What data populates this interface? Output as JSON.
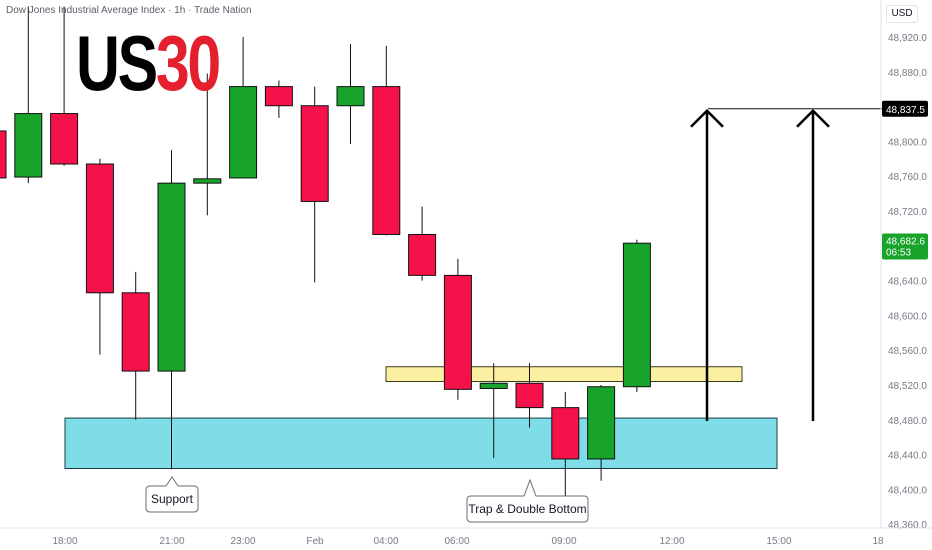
{
  "header": {
    "title": "Dow Jones Industrial Average Index · 1h · Trade Nation",
    "brand_part1": "US",
    "brand_part2": "30",
    "currency": "USD"
  },
  "colors": {
    "up": "#18a32a",
    "down": "#f5124a",
    "support_zone": "#7fdde8",
    "resistance_zone": "#fbf0a2",
    "target_label_bg": "#000000",
    "current_label_bg": "#18a32a"
  },
  "annotations": {
    "support_label": "Support",
    "trap_label": "Trap & Double Bottom"
  },
  "price_labels": {
    "target": "48,837.5",
    "current_price": "48,682.6",
    "countdown": "06:53"
  },
  "chart_data": {
    "type": "candlestick",
    "x_tick_labels": [
      "18:00",
      "21:00",
      "23:00",
      "Feb",
      "04:00",
      "06:00",
      "09:00",
      "12:00",
      "15:00",
      "18"
    ],
    "y_tick_labels": [
      "48,920.0",
      "48,880.0",
      "48,840.0",
      "48,800.0",
      "48,760.0",
      "48,720.0",
      "48,680.0",
      "48,640.0",
      "48,600.0",
      "48,560.0",
      "48,520.0",
      "48,480.0",
      "48,440.0",
      "48,400.0",
      "48,360.0"
    ],
    "ylim": [
      48340,
      48950
    ],
    "candles": [
      {
        "o": 48812,
        "h": 48812,
        "l": 48758,
        "c": 48758
      },
      {
        "o": 48759,
        "h": 48955,
        "l": 48752,
        "c": 48832
      },
      {
        "o": 48832,
        "h": 48955,
        "l": 48772,
        "c": 48774
      },
      {
        "o": 48774,
        "h": 48780,
        "l": 48555,
        "c": 48626
      },
      {
        "o": 48626,
        "h": 48650,
        "l": 48480,
        "c": 48536
      },
      {
        "o": 48536,
        "h": 48790,
        "l": 48423,
        "c": 48752
      },
      {
        "o": 48752,
        "h": 48878,
        "l": 48715,
        "c": 48757
      },
      {
        "o": 48758,
        "h": 48920,
        "l": 48758,
        "c": 48863
      },
      {
        "o": 48863,
        "h": 48870,
        "l": 48827,
        "c": 48841
      },
      {
        "o": 48841,
        "h": 48863,
        "l": 48638,
        "c": 48731
      },
      {
        "o": 48841,
        "h": 48912,
        "l": 48797,
        "c": 48863
      },
      {
        "o": 48863,
        "h": 48910,
        "l": 48692,
        "c": 48693
      },
      {
        "o": 48693,
        "h": 48725,
        "l": 48640,
        "c": 48646
      },
      {
        "o": 48646,
        "h": 48665,
        "l": 48503,
        "c": 48515
      },
      {
        "o": 48516,
        "h": 48545,
        "l": 48436,
        "c": 48522
      },
      {
        "o": 48522,
        "h": 48545,
        "l": 48471,
        "c": 48494
      },
      {
        "o": 48494,
        "h": 48512,
        "l": 48380,
        "c": 48435
      },
      {
        "o": 48435,
        "h": 48520,
        "l": 48410,
        "c": 48518
      },
      {
        "o": 48518,
        "h": 48687,
        "l": 48512,
        "c": 48683
      }
    ],
    "support_zone": {
      "from": 48424,
      "to": 48482
    },
    "resistance_zone": {
      "from": 48524,
      "to": 48541
    },
    "target_level": 48837.5,
    "current_price": 48682.6,
    "grid": false
  }
}
